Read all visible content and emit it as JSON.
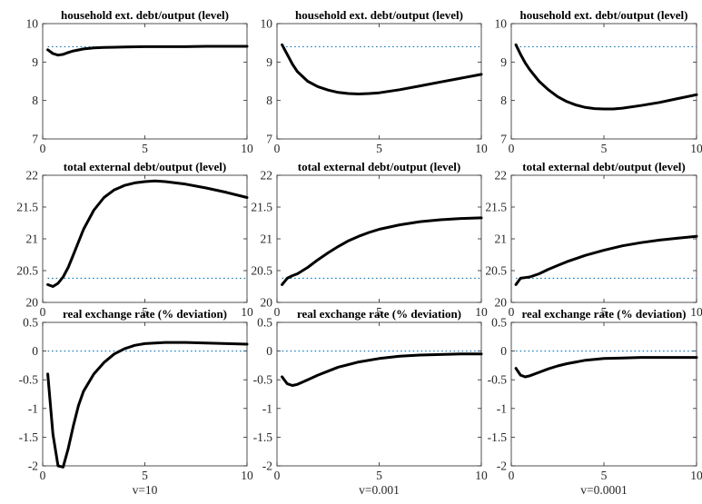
{
  "colors": {
    "series": "#000000",
    "reference": "#0072BD",
    "axes": "#262626"
  },
  "chart_data": [
    {
      "type": "line",
      "title": "household ext. debt/output (level)",
      "xlabel": "",
      "xlim": [
        0,
        10
      ],
      "ylim": [
        7,
        10
      ],
      "yticks": [
        "7",
        "8",
        "9",
        "10"
      ],
      "xticks": [
        "0",
        "5",
        "10"
      ],
      "reference": 9.4,
      "x": [
        0.25,
        0.5,
        0.75,
        1,
        1.25,
        1.5,
        2,
        2.5,
        3,
        4,
        5,
        6,
        7,
        8,
        9,
        10
      ],
      "values": [
        9.32,
        9.22,
        9.18,
        9.2,
        9.25,
        9.29,
        9.34,
        9.37,
        9.38,
        9.39,
        9.4,
        9.4,
        9.4,
        9.41,
        9.41,
        9.41
      ]
    },
    {
      "type": "line",
      "title": "household ext. debt/output (level)",
      "xlabel": "",
      "xlim": [
        0,
        10
      ],
      "ylim": [
        7,
        10
      ],
      "yticks": [
        "7",
        "8",
        "9",
        "10"
      ],
      "xticks": [
        "0",
        "5",
        "10"
      ],
      "reference": 9.4,
      "x": [
        0.25,
        0.5,
        0.75,
        1,
        1.5,
        2,
        2.5,
        3,
        3.5,
        4,
        4.5,
        5,
        6,
        7,
        8,
        9,
        10
      ],
      "values": [
        9.45,
        9.2,
        8.95,
        8.75,
        8.5,
        8.36,
        8.27,
        8.21,
        8.18,
        8.17,
        8.18,
        8.2,
        8.28,
        8.38,
        8.48,
        8.58,
        8.68
      ]
    },
    {
      "type": "line",
      "title": "household ext. debt/output (level)",
      "xlabel": "",
      "xlim": [
        0,
        10
      ],
      "ylim": [
        7,
        10
      ],
      "yticks": [
        "7",
        "8",
        "9",
        "10"
      ],
      "xticks": [
        "0",
        "5",
        "10"
      ],
      "reference": 9.4,
      "x": [
        0.25,
        0.5,
        0.75,
        1,
        1.5,
        2,
        2.5,
        3,
        3.5,
        4,
        4.5,
        5,
        5.5,
        6,
        7,
        8,
        9,
        10
      ],
      "values": [
        9.45,
        9.2,
        8.98,
        8.8,
        8.5,
        8.28,
        8.1,
        7.97,
        7.88,
        7.82,
        7.79,
        7.78,
        7.78,
        7.8,
        7.87,
        7.95,
        8.05,
        8.15
      ]
    },
    {
      "type": "line",
      "title": "total external debt/output (level)",
      "xlabel": "",
      "xlim": [
        0,
        10
      ],
      "ylim": [
        20,
        22
      ],
      "yticks": [
        "20",
        "20.5",
        "21",
        "21.5",
        "22"
      ],
      "xticks": [
        "0",
        "5",
        "10"
      ],
      "reference": 20.38,
      "x": [
        0.25,
        0.5,
        0.75,
        1,
        1.25,
        1.5,
        1.75,
        2,
        2.5,
        3,
        3.5,
        4,
        4.5,
        5,
        5.5,
        6,
        7,
        8,
        9,
        10
      ],
      "values": [
        20.28,
        20.25,
        20.3,
        20.4,
        20.55,
        20.75,
        20.95,
        21.15,
        21.45,
        21.65,
        21.77,
        21.84,
        21.88,
        21.9,
        21.91,
        21.9,
        21.86,
        21.8,
        21.73,
        21.65
      ]
    },
    {
      "type": "line",
      "title": "total external debt/output (level)",
      "xlabel": "",
      "xlim": [
        0,
        10
      ],
      "ylim": [
        20,
        22
      ],
      "yticks": [
        "20",
        "20.5",
        "21",
        "21.5",
        "22"
      ],
      "xticks": [
        "0",
        "5",
        "10"
      ],
      "reference": 20.38,
      "x": [
        0.25,
        0.5,
        0.75,
        1,
        1.5,
        2,
        2.5,
        3,
        3.5,
        4,
        4.5,
        5,
        6,
        7,
        8,
        9,
        10
      ],
      "values": [
        20.28,
        20.38,
        20.42,
        20.45,
        20.55,
        20.67,
        20.78,
        20.88,
        20.97,
        21.04,
        21.1,
        21.15,
        21.22,
        21.27,
        21.3,
        21.32,
        21.33
      ]
    },
    {
      "type": "line",
      "title": "total external debt/output (level)",
      "xlabel": "",
      "xlim": [
        0,
        10
      ],
      "ylim": [
        20,
        22
      ],
      "yticks": [
        "20",
        "20.5",
        "21",
        "21.5",
        "22"
      ],
      "xticks": [
        "0",
        "5",
        "10"
      ],
      "reference": 20.38,
      "x": [
        0.25,
        0.5,
        0.75,
        1,
        1.5,
        2,
        2.5,
        3,
        3.5,
        4,
        5,
        6,
        7,
        8,
        9,
        10
      ],
      "values": [
        20.28,
        20.38,
        20.39,
        20.4,
        20.45,
        20.52,
        20.58,
        20.64,
        20.69,
        20.74,
        20.82,
        20.89,
        20.94,
        20.98,
        21.01,
        21.04
      ]
    },
    {
      "type": "line",
      "title": "real exchange rate (% deviation)",
      "xlabel": "v=10",
      "xlim": [
        0,
        10
      ],
      "ylim": [
        -2,
        0.5
      ],
      "yticks": [
        "-2",
        "-1.5",
        "-1",
        "-0.5",
        "0",
        "0.5"
      ],
      "xticks": [
        "0",
        "5",
        "10"
      ],
      "reference": 0,
      "x": [
        0.25,
        0.5,
        0.75,
        1,
        1.25,
        1.5,
        1.75,
        2,
        2.5,
        3,
        3.5,
        4,
        4.5,
        5,
        6,
        7,
        8,
        9,
        10
      ],
      "values": [
        -0.4,
        -1.45,
        -2.0,
        -2.02,
        -1.7,
        -1.3,
        -0.95,
        -0.7,
        -0.4,
        -0.2,
        -0.05,
        0.04,
        0.1,
        0.13,
        0.15,
        0.15,
        0.14,
        0.13,
        0.12
      ]
    },
    {
      "type": "line",
      "title": "real exchange rate (% deviation)",
      "xlabel": "v=0.001",
      "xlim": [
        0,
        10
      ],
      "ylim": [
        -2,
        0.5
      ],
      "yticks": [
        "-2",
        "-1.5",
        "-1",
        "-0.5",
        "0",
        "0.5"
      ],
      "xticks": [
        "0",
        "5",
        "10"
      ],
      "reference": 0,
      "x": [
        0.25,
        0.5,
        0.75,
        1,
        1.5,
        2,
        2.5,
        3,
        4,
        5,
        6,
        7,
        8,
        9,
        10
      ],
      "values": [
        -0.45,
        -0.57,
        -0.6,
        -0.58,
        -0.5,
        -0.42,
        -0.35,
        -0.28,
        -0.19,
        -0.13,
        -0.09,
        -0.07,
        -0.06,
        -0.05,
        -0.05
      ]
    },
    {
      "type": "line",
      "title": "real exchange rate (% deviation)",
      "xlabel": "v=0.0001",
      "xlim": [
        0,
        10
      ],
      "ylim": [
        -2,
        0.5
      ],
      "yticks": [
        "-2",
        "-1.5",
        "-1",
        "-0.5",
        "0",
        "0.5"
      ],
      "xticks": [
        "0",
        "5",
        "10"
      ],
      "reference": 0,
      "x": [
        0.25,
        0.5,
        0.75,
        1,
        1.5,
        2,
        2.5,
        3,
        4,
        5,
        6,
        7,
        8,
        9,
        10
      ],
      "values": [
        -0.3,
        -0.42,
        -0.45,
        -0.43,
        -0.37,
        -0.31,
        -0.26,
        -0.22,
        -0.16,
        -0.13,
        -0.12,
        -0.11,
        -0.11,
        -0.11,
        -0.11
      ]
    }
  ]
}
